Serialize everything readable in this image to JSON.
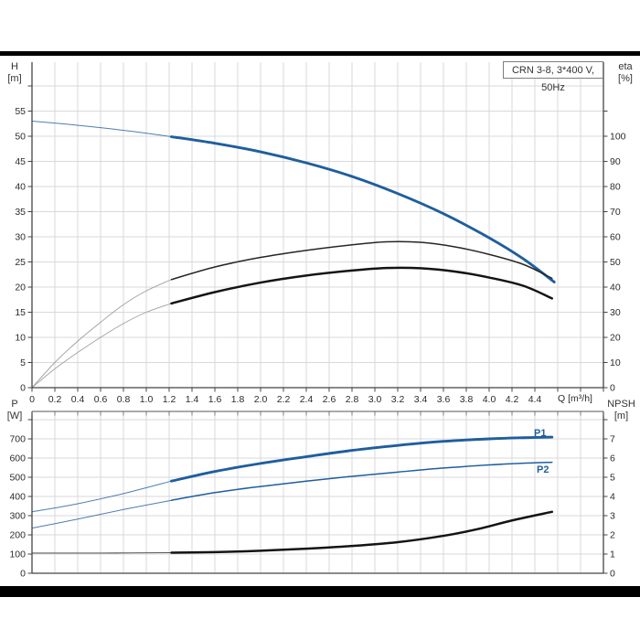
{
  "title_box": "CRN 3-8, 3*400 V, 50Hz",
  "x_axis_label": "Q [m³/h]",
  "axis_corner_labels": {
    "top_left": [
      "H",
      "[m]"
    ],
    "top_right": [
      "eta",
      "[%]"
    ],
    "bottom_left": [
      "P",
      "[W]"
    ],
    "bottom_right": [
      "NPSH",
      "[m]"
    ]
  },
  "curve_labels": {
    "p1": "P1",
    "p2": "P2"
  },
  "colors": {
    "curve_blue": "#1f5e9e",
    "curve_black": "#141414",
    "curve_gray": "#a0a0a0",
    "grid": "#d9d9d9",
    "axis": "#444444",
    "tick_text": "#2b2b2b",
    "frame": "#000000"
  },
  "chart_data": [
    {
      "id": "head-efficiency",
      "type": "line",
      "title": "CRN 3-8, 3*400 V, 50Hz",
      "xlabel": "Q [m³/h]",
      "ylabel_left": "H [m]",
      "ylabel_right": "eta [%]",
      "grid": true,
      "x_range": [
        0,
        5.0
      ],
      "x_tick_step": 0.2,
      "x_tick_labels": [
        "0",
        "0.2",
        "0.4",
        "0.6",
        "0.8",
        "1.0",
        "1.2",
        "1.4",
        "1.6",
        "1.8",
        "2.0",
        "2.2",
        "2.4",
        "2.6",
        "2.8",
        "3.0",
        "3.2",
        "3.4",
        "3.6",
        "3.8",
        "4.0",
        "4.2",
        "4.4"
      ],
      "y_left_ticks": [
        0,
        5,
        10,
        15,
        20,
        25,
        30,
        35,
        40,
        45,
        50,
        55
      ],
      "y_left_unlabeled_tick": 60,
      "y_left_range": [
        0,
        64.7
      ],
      "y_right_ticks": [
        0,
        10,
        20,
        30,
        40,
        50,
        60,
        70,
        80,
        90,
        100
      ],
      "y_right_unlabeled_tick": 110,
      "y_right_range": [
        0,
        129.5
      ],
      "series": [
        {
          "name": "H-curve-lead",
          "axis": "left",
          "style": "thin_blue",
          "points": [
            [
              0,
              53
            ],
            [
              0.3,
              52.4
            ],
            [
              0.6,
              51.7
            ],
            [
              0.9,
              50.9
            ],
            [
              1.22,
              49.9
            ]
          ]
        },
        {
          "name": "H-curve",
          "axis": "left",
          "style": "thick_blue",
          "points": [
            [
              1.22,
              49.9
            ],
            [
              1.6,
              48.6
            ],
            [
              2.0,
              46.9
            ],
            [
              2.4,
              44.7
            ],
            [
              2.8,
              42.0
            ],
            [
              3.2,
              38.6
            ],
            [
              3.6,
              34.6
            ],
            [
              4.0,
              29.8
            ],
            [
              4.3,
              25.6
            ],
            [
              4.57,
              21.0
            ]
          ]
        },
        {
          "name": "eta-pump-lead",
          "axis": "right",
          "style": "thin_gray",
          "points": [
            [
              0,
              0
            ],
            [
              0.2,
              10
            ],
            [
              0.4,
              18.5
            ],
            [
              0.6,
              26
            ],
            [
              0.8,
              33
            ],
            [
              1.0,
              38.5
            ],
            [
              1.22,
              43
            ]
          ]
        },
        {
          "name": "eta-pump",
          "axis": "right",
          "style": "medium_black",
          "points": [
            [
              1.22,
              43
            ],
            [
              1.6,
              48
            ],
            [
              2.0,
              51.8
            ],
            [
              2.4,
              54.6
            ],
            [
              2.8,
              56.8
            ],
            [
              3.1,
              58
            ],
            [
              3.4,
              57.8
            ],
            [
              3.7,
              56
            ],
            [
              4.0,
              53
            ],
            [
              4.3,
              49
            ],
            [
              4.55,
              43.5
            ]
          ]
        },
        {
          "name": "eta-pump-motor-lead",
          "axis": "right",
          "style": "thin_gray",
          "points": [
            [
              0,
              0
            ],
            [
              0.2,
              7.5
            ],
            [
              0.4,
              14
            ],
            [
              0.6,
              20
            ],
            [
              0.8,
              25.5
            ],
            [
              1.0,
              30
            ],
            [
              1.22,
              33.5
            ]
          ]
        },
        {
          "name": "eta-pump-motor",
          "axis": "right",
          "style": "thick_black",
          "points": [
            [
              1.22,
              33.5
            ],
            [
              1.6,
              38
            ],
            [
              2.0,
              41.8
            ],
            [
              2.4,
              44.6
            ],
            [
              2.8,
              46.6
            ],
            [
              3.1,
              47.6
            ],
            [
              3.4,
              47.5
            ],
            [
              3.7,
              46.2
            ],
            [
              4.0,
              43.8
            ],
            [
              4.3,
              40.5
            ],
            [
              4.55,
              35.5
            ]
          ]
        }
      ]
    },
    {
      "id": "power-npsh",
      "type": "line",
      "title": "",
      "xlabel": "",
      "ylabel_left": "P [W]",
      "ylabel_right": "NPSH [m]",
      "grid": true,
      "x_range": [
        0,
        5.0
      ],
      "x_tick_step": 0.2,
      "x_tick_labels": [],
      "y_left_ticks": [
        0,
        100,
        200,
        300,
        400,
        500,
        600,
        700
      ],
      "y_left_unlabeled_tick": 800,
      "y_left_range": [
        0,
        843
      ],
      "y_right_ticks": [
        0,
        1,
        2,
        3,
        4,
        5,
        6,
        7
      ],
      "y_right_unlabeled_tick": 8,
      "y_right_range": [
        0,
        8.43
      ],
      "series": [
        {
          "name": "P1-lead",
          "axis": "left",
          "style": "thin_blue",
          "points": [
            [
              0,
              320
            ],
            [
              0.4,
              362
            ],
            [
              0.8,
              415
            ],
            [
              1.22,
              480
            ]
          ]
        },
        {
          "name": "P1",
          "axis": "left",
          "style": "thick_blue",
          "label": "P1",
          "points": [
            [
              1.22,
              480
            ],
            [
              1.6,
              530
            ],
            [
              2.0,
              572
            ],
            [
              2.4,
              607
            ],
            [
              2.8,
              640
            ],
            [
              3.2,
              666
            ],
            [
              3.6,
              687
            ],
            [
              4.0,
              700
            ],
            [
              4.3,
              706
            ],
            [
              4.55,
              709
            ]
          ]
        },
        {
          "name": "P2-lead",
          "axis": "left",
          "style": "thin_blue",
          "points": [
            [
              0,
              235
            ],
            [
              0.4,
              282
            ],
            [
              0.8,
              332
            ],
            [
              1.22,
              380
            ]
          ]
        },
        {
          "name": "P2",
          "axis": "left",
          "style": "medium_blue",
          "label": "P2",
          "points": [
            [
              1.22,
              380
            ],
            [
              1.6,
              420
            ],
            [
              2.0,
              452
            ],
            [
              2.4,
              480
            ],
            [
              2.8,
              505
            ],
            [
              3.2,
              527
            ],
            [
              3.6,
              548
            ],
            [
              4.0,
              564
            ],
            [
              4.3,
              573
            ],
            [
              4.55,
              578
            ]
          ]
        },
        {
          "name": "NPSH-lead",
          "axis": "right",
          "style": "thin_black",
          "points": [
            [
              0,
              1.05
            ],
            [
              0.6,
              1.05
            ],
            [
              1.22,
              1.07
            ]
          ]
        },
        {
          "name": "NPSH",
          "axis": "right",
          "style": "thick_black",
          "points": [
            [
              1.22,
              1.07
            ],
            [
              1.6,
              1.1
            ],
            [
              2.0,
              1.17
            ],
            [
              2.4,
              1.28
            ],
            [
              2.8,
              1.42
            ],
            [
              3.2,
              1.62
            ],
            [
              3.6,
              1.95
            ],
            [
              3.9,
              2.3
            ],
            [
              4.2,
              2.75
            ],
            [
              4.55,
              3.2
            ]
          ]
        }
      ]
    }
  ]
}
